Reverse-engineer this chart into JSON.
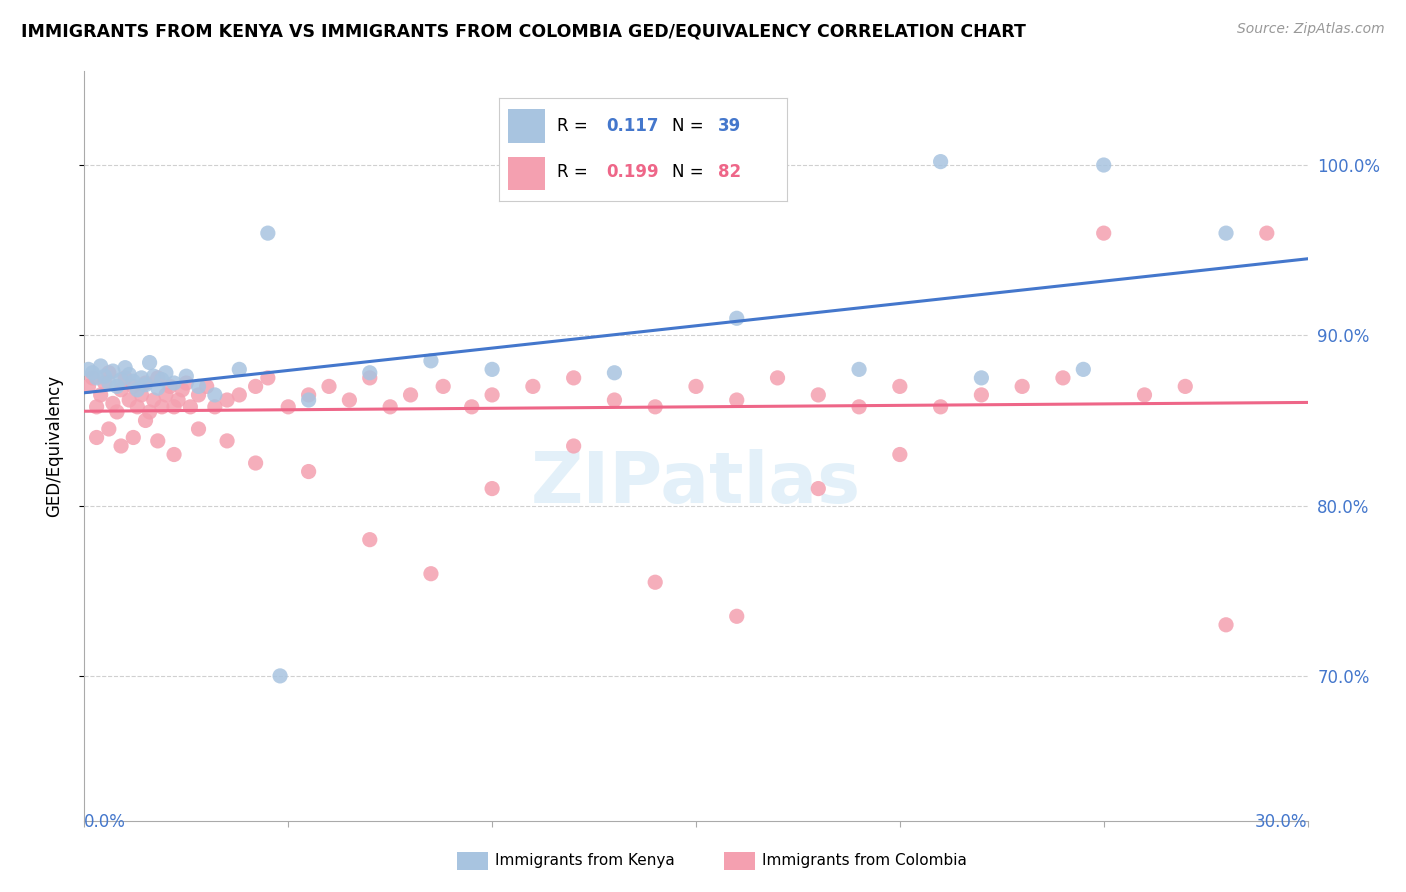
{
  "title": "IMMIGRANTS FROM KENYA VS IMMIGRANTS FROM COLOMBIA GED/EQUIVALENCY CORRELATION CHART",
  "source": "Source: ZipAtlas.com",
  "ylabel": "GED/Equivalency",
  "xlim": [
    0.0,
    0.3
  ],
  "ylim": [
    0.615,
    1.055
  ],
  "kenya_color": "#a8c4e0",
  "colombia_color": "#f4a0b0",
  "kenya_line_color": "#4477cc",
  "colombia_line_color": "#ee6688",
  "kenya_R": 0.117,
  "kenya_N": 39,
  "colombia_R": 0.199,
  "colombia_N": 82,
  "watermark": "ZIPatlas",
  "kenya_x": [
    0.001,
    0.002,
    0.003,
    0.004,
    0.005,
    0.006,
    0.007,
    0.008,
    0.009,
    0.01,
    0.011,
    0.012,
    0.013,
    0.014,
    0.015,
    0.016,
    0.017,
    0.018,
    0.019,
    0.02,
    0.022,
    0.025,
    0.028,
    0.032,
    0.038,
    0.045,
    0.055,
    0.07,
    0.085,
    0.1,
    0.13,
    0.16,
    0.19,
    0.22,
    0.25,
    0.28,
    0.048,
    0.21,
    0.245
  ],
  "kenya_y": [
    0.88,
    0.878,
    0.875,
    0.882,
    0.876,
    0.872,
    0.879,
    0.87,
    0.874,
    0.881,
    0.877,
    0.873,
    0.868,
    0.875,
    0.871,
    0.884,
    0.876,
    0.869,
    0.874,
    0.878,
    0.872,
    0.876,
    0.87,
    0.865,
    0.88,
    0.96,
    0.862,
    0.878,
    0.885,
    0.88,
    0.878,
    0.91,
    0.88,
    0.875,
    1.0,
    0.96,
    0.7,
    1.002,
    0.88
  ],
  "colombia_x": [
    0.001,
    0.002,
    0.003,
    0.004,
    0.005,
    0.006,
    0.007,
    0.008,
    0.009,
    0.01,
    0.011,
    0.012,
    0.013,
    0.014,
    0.015,
    0.016,
    0.017,
    0.018,
    0.019,
    0.02,
    0.021,
    0.022,
    0.023,
    0.024,
    0.025,
    0.026,
    0.028,
    0.03,
    0.032,
    0.035,
    0.038,
    0.042,
    0.045,
    0.05,
    0.055,
    0.06,
    0.065,
    0.07,
    0.075,
    0.08,
    0.088,
    0.095,
    0.1,
    0.11,
    0.12,
    0.13,
    0.14,
    0.15,
    0.16,
    0.17,
    0.18,
    0.19,
    0.2,
    0.21,
    0.22,
    0.23,
    0.24,
    0.25,
    0.26,
    0.27,
    0.28,
    0.29,
    0.003,
    0.006,
    0.009,
    0.012,
    0.015,
    0.018,
    0.022,
    0.028,
    0.035,
    0.042,
    0.055,
    0.07,
    0.085,
    0.1,
    0.12,
    0.14,
    0.16,
    0.18,
    0.2,
    0.155
  ],
  "colombia_y": [
    0.87,
    0.875,
    0.858,
    0.865,
    0.872,
    0.878,
    0.86,
    0.855,
    0.868,
    0.875,
    0.862,
    0.87,
    0.858,
    0.865,
    0.872,
    0.855,
    0.862,
    0.875,
    0.858,
    0.865,
    0.87,
    0.858,
    0.862,
    0.868,
    0.872,
    0.858,
    0.865,
    0.87,
    0.858,
    0.862,
    0.865,
    0.87,
    0.875,
    0.858,
    0.865,
    0.87,
    0.862,
    0.875,
    0.858,
    0.865,
    0.87,
    0.858,
    0.865,
    0.87,
    0.875,
    0.862,
    0.858,
    0.87,
    0.862,
    0.875,
    0.865,
    0.858,
    0.87,
    0.858,
    0.865,
    0.87,
    0.875,
    0.96,
    0.865,
    0.87,
    0.73,
    0.96,
    0.84,
    0.845,
    0.835,
    0.84,
    0.85,
    0.838,
    0.83,
    0.845,
    0.838,
    0.825,
    0.82,
    0.78,
    0.76,
    0.81,
    0.835,
    0.755,
    0.735,
    0.81,
    0.83,
    1.002
  ]
}
